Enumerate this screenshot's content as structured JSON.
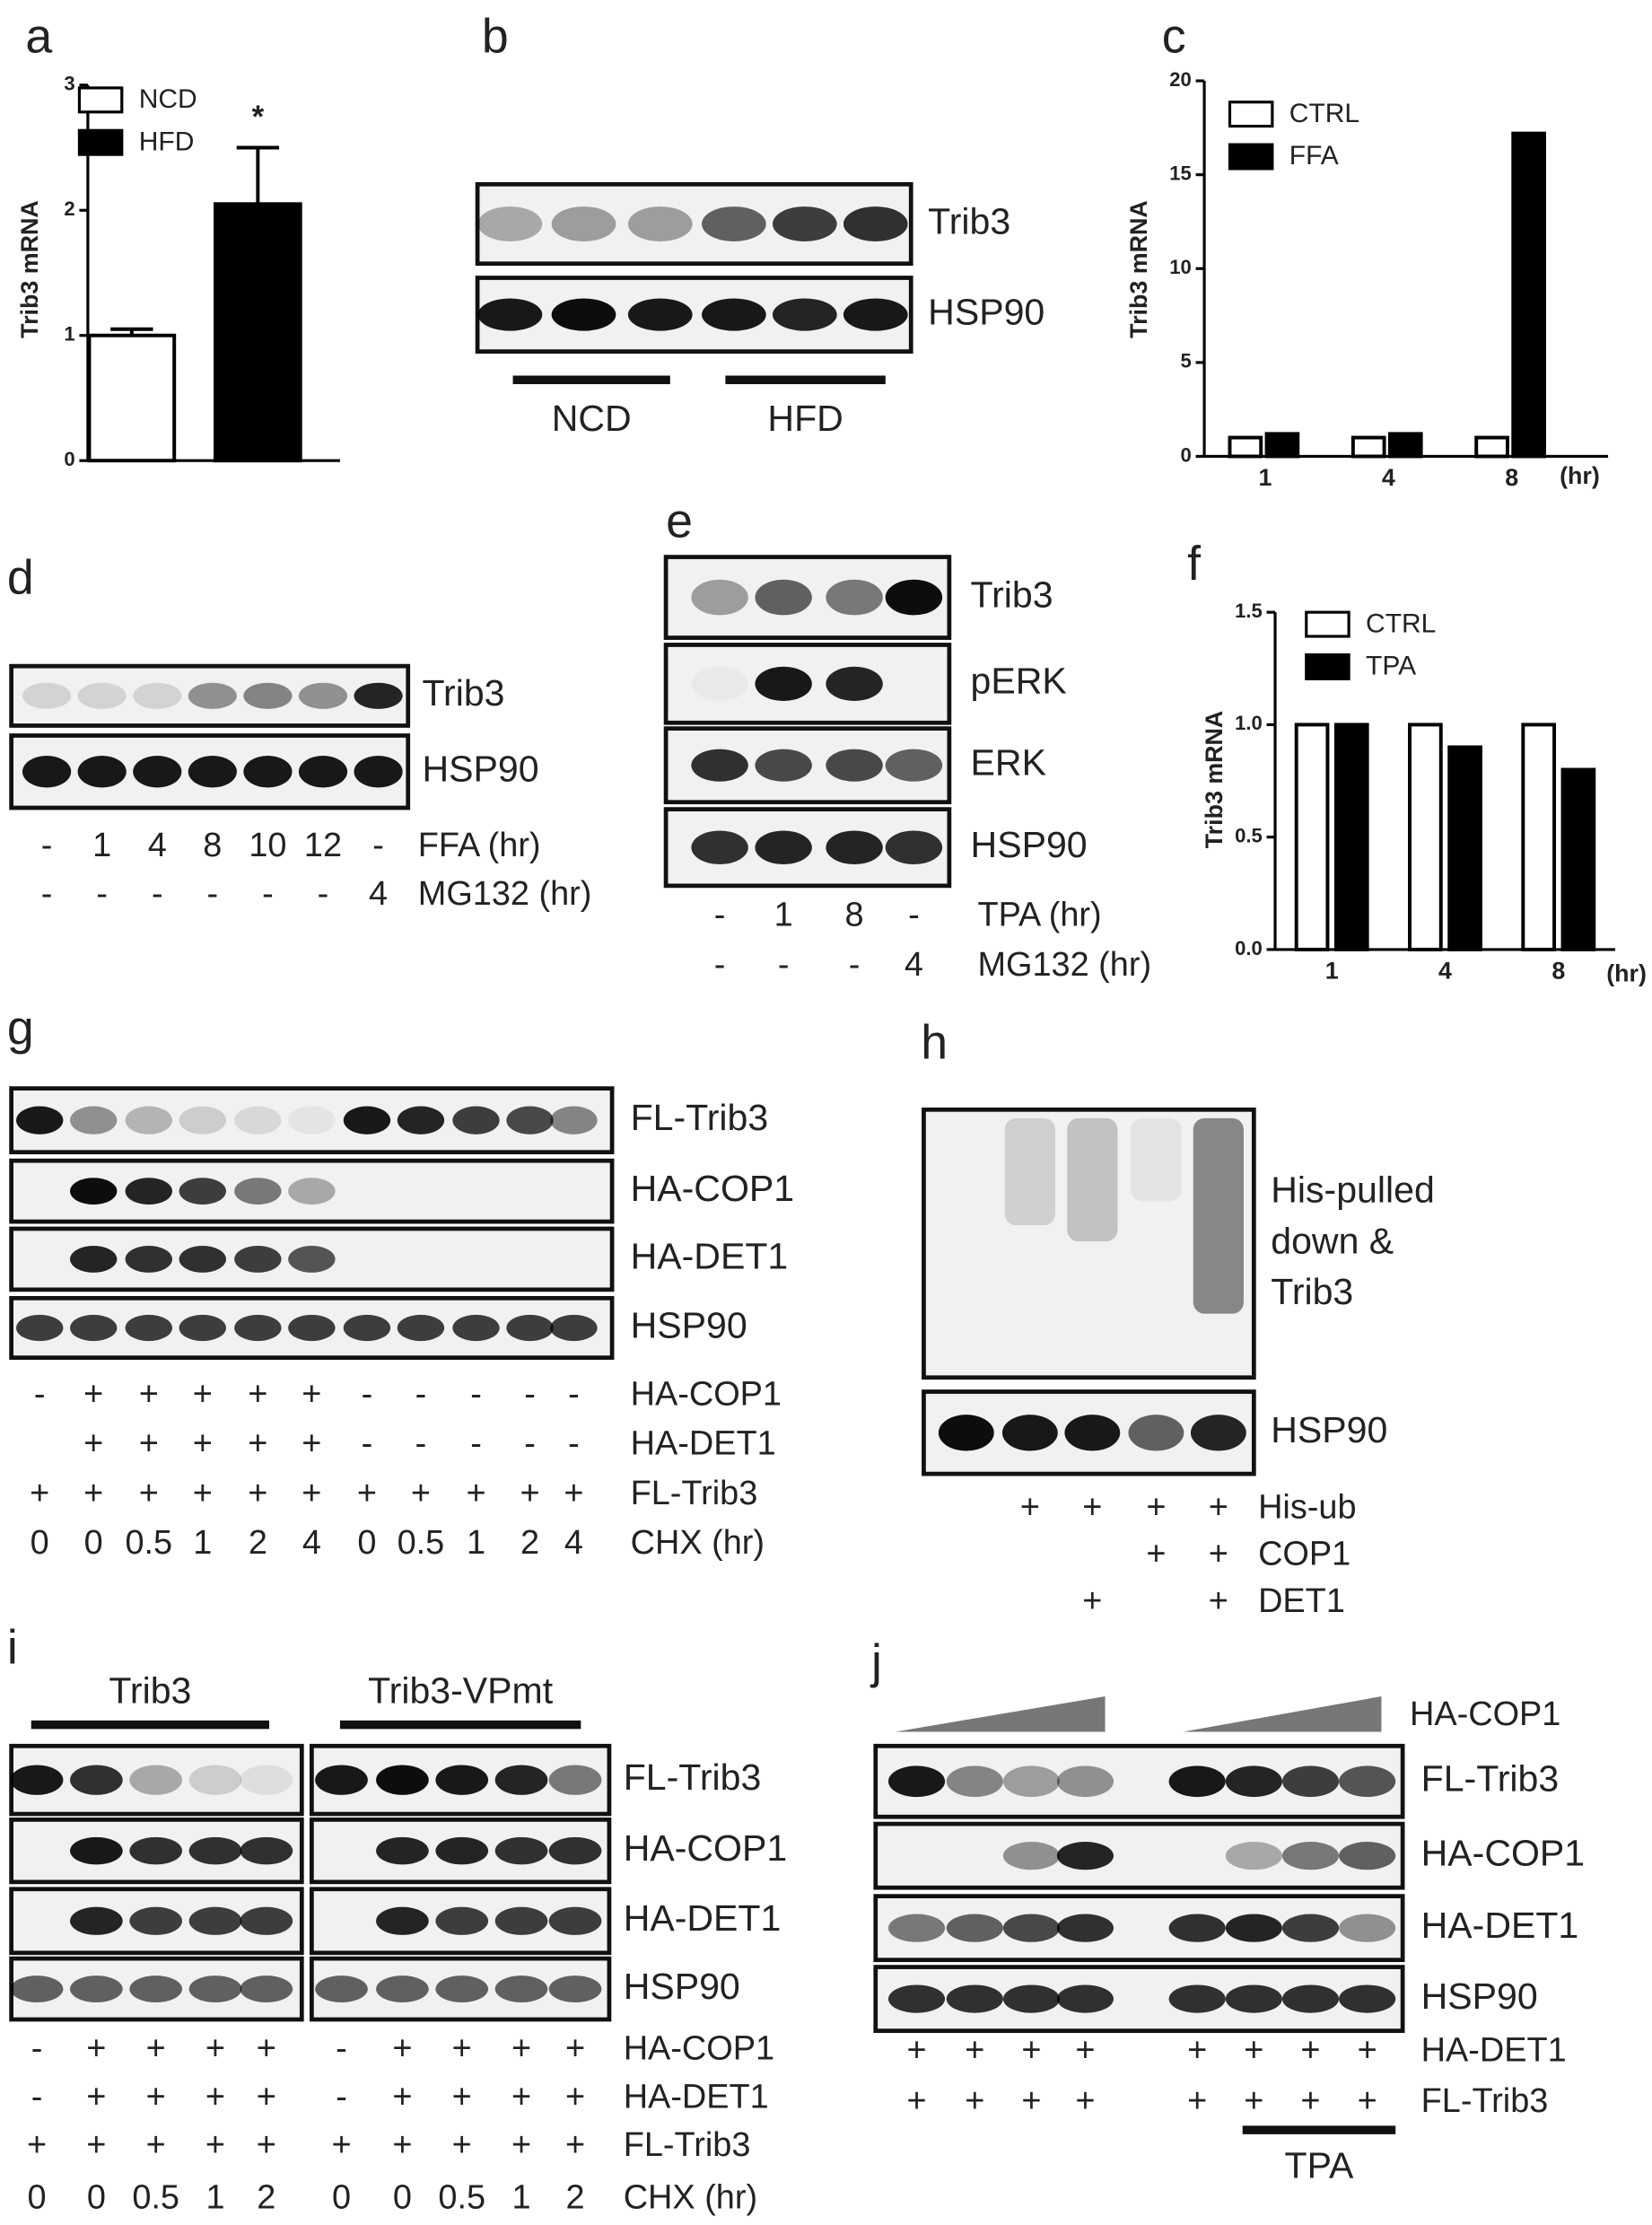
{
  "panels": {
    "a": {
      "letter": "a",
      "chart_data": {
        "type": "bar",
        "ylabel": "Trib3 mRNA",
        "categories": [
          null
        ],
        "series": [
          {
            "name": "NCD",
            "color": "#ffffff",
            "values": [
              1.0
            ],
            "errors": [
              0.05
            ]
          },
          {
            "name": "HFD",
            "color": "#000000",
            "values": [
              2.05
            ],
            "errors": [
              0.45
            ]
          }
        ],
        "ylim": [
          0,
          3
        ],
        "yticks": [
          0,
          1,
          2,
          3
        ],
        "annotations": [
          "*"
        ]
      }
    },
    "b": {
      "letter": "b",
      "blots": [
        "Trib3",
        "HSP90"
      ],
      "groups": [
        "NCD",
        "HFD"
      ]
    },
    "c": {
      "letter": "c",
      "chart_data": {
        "type": "bar",
        "ylabel": "Trib3 mRNA",
        "xlabel": "(hr)",
        "categories": [
          "1",
          "4",
          "8"
        ],
        "series": [
          {
            "name": "CTRL",
            "color": "#ffffff",
            "values": [
              1,
              1,
              1
            ]
          },
          {
            "name": "FFA",
            "color": "#000000",
            "values": [
              1.2,
              1.2,
              17.2
            ]
          }
        ],
        "ylim": [
          0,
          20
        ],
        "yticks": [
          0,
          5,
          10,
          15,
          20
        ]
      }
    },
    "d": {
      "letter": "d",
      "blots": [
        "Trib3",
        "HSP90"
      ],
      "rows": [
        {
          "name": "FFA (hr)",
          "cells": [
            "-",
            "1",
            "4",
            "8",
            "10",
            "12",
            "-"
          ]
        },
        {
          "name": "MG132 (hr)",
          "cells": [
            "-",
            "-",
            "-",
            "-",
            "-",
            "-",
            "4"
          ]
        }
      ]
    },
    "e": {
      "letter": "e",
      "blots": [
        "Trib3",
        "pERK",
        "ERK",
        "HSP90"
      ],
      "rows": [
        {
          "name": "TPA (hr)",
          "cells": [
            "-",
            "1",
            "8",
            "-"
          ]
        },
        {
          "name": "MG132 (hr)",
          "cells": [
            "-",
            "-",
            "-",
            "4"
          ]
        }
      ]
    },
    "f": {
      "letter": "f",
      "chart_data": {
        "type": "bar",
        "ylabel": "Trib3 mRNA",
        "xlabel": "(hr)",
        "categories": [
          "1",
          "4",
          "8"
        ],
        "series": [
          {
            "name": "CTRL",
            "color": "#ffffff",
            "values": [
              1.0,
              1.0,
              1.0
            ]
          },
          {
            "name": "TPA",
            "color": "#000000",
            "values": [
              1.0,
              0.9,
              0.8
            ]
          }
        ],
        "ylim": [
          0,
          1.5
        ],
        "yticks": [
          {
            "value": 0,
            "label": "0.0"
          },
          {
            "value": 0.5,
            "label": "0.5"
          },
          {
            "value": 1,
            "label": "1.0"
          },
          {
            "value": 1.5,
            "label": "1.5"
          }
        ]
      }
    },
    "g": {
      "letter": "g",
      "blots": [
        "FL-Trib3",
        "HA-COP1",
        "HA-DET1",
        "HSP90"
      ],
      "rows": [
        {
          "name": "HA-COP1",
          "cells": [
            "-",
            "+",
            "+",
            "+",
            "+",
            "+",
            "-",
            "-",
            "-",
            "-",
            "-"
          ]
        },
        {
          "name": "HA-DET1",
          "cells": [
            null,
            "+",
            "+",
            "+",
            "+",
            "+",
            "-",
            "-",
            "-",
            "-",
            "-"
          ]
        },
        {
          "name": "FL-Trib3",
          "cells": [
            "+",
            "+",
            "+",
            "+",
            "+",
            "+",
            "+",
            "+",
            "+",
            "+",
            "+"
          ]
        },
        {
          "name": "CHX (hr)",
          "cells": [
            "0",
            "0",
            "0.5",
            "1",
            "2",
            "4",
            "0",
            "0.5",
            "1",
            "2",
            "4"
          ]
        }
      ]
    },
    "h": {
      "letter": "h",
      "blots": [
        [
          "His-pulled",
          "down &",
          "Trib3"
        ],
        "HSP90"
      ],
      "rows": [
        {
          "name": "His-ub",
          "cells": [
            null,
            "+",
            "+",
            "+",
            "+"
          ]
        },
        {
          "name": "COP1",
          "cells": [
            null,
            null,
            null,
            "+",
            "+"
          ]
        },
        {
          "name": "DET1",
          "cells": [
            null,
            null,
            "+",
            null,
            "+"
          ]
        }
      ]
    },
    "i": {
      "letter": "i",
      "groups": [
        "Trib3",
        "Trib3-VPmt"
      ],
      "blots": [
        "FL-Trib3",
        "HA-COP1",
        "HA-DET1",
        "HSP90"
      ],
      "rows": [
        {
          "name": "HA-COP1",
          "cells": [
            "-",
            "+",
            "+",
            "+",
            "+",
            "-",
            "+",
            "+",
            "+",
            "+"
          ]
        },
        {
          "name": "HA-DET1",
          "cells": [
            "-",
            "+",
            "+",
            "+",
            "+",
            "-",
            "+",
            "+",
            "+",
            "+"
          ]
        },
        {
          "name": "FL-Trib3",
          "cells": [
            "+",
            "+",
            "+",
            "+",
            "+",
            "+",
            "+",
            "+",
            "+",
            "+"
          ]
        },
        {
          "name": "CHX (hr)",
          "cells": [
            "0",
            "0",
            "0.5",
            "1",
            "2",
            "0",
            "0",
            "0.5",
            "1",
            "2"
          ]
        }
      ]
    },
    "j": {
      "letter": "j",
      "gradient": "HA-COP1",
      "blots": [
        "FL-Trib3",
        "HA-COP1",
        "HA-DET1",
        "HSP90"
      ],
      "rows": [
        {
          "name": "HA-DET1",
          "cells": [
            "+",
            "+",
            "+",
            "+",
            "+",
            "+",
            "+",
            "+"
          ]
        },
        {
          "name": "FL-Trib3",
          "cells": [
            "+",
            "+",
            "+",
            "+",
            "+",
            "+",
            "+",
            "+"
          ]
        }
      ],
      "groups": [
        "TPA"
      ]
    }
  }
}
